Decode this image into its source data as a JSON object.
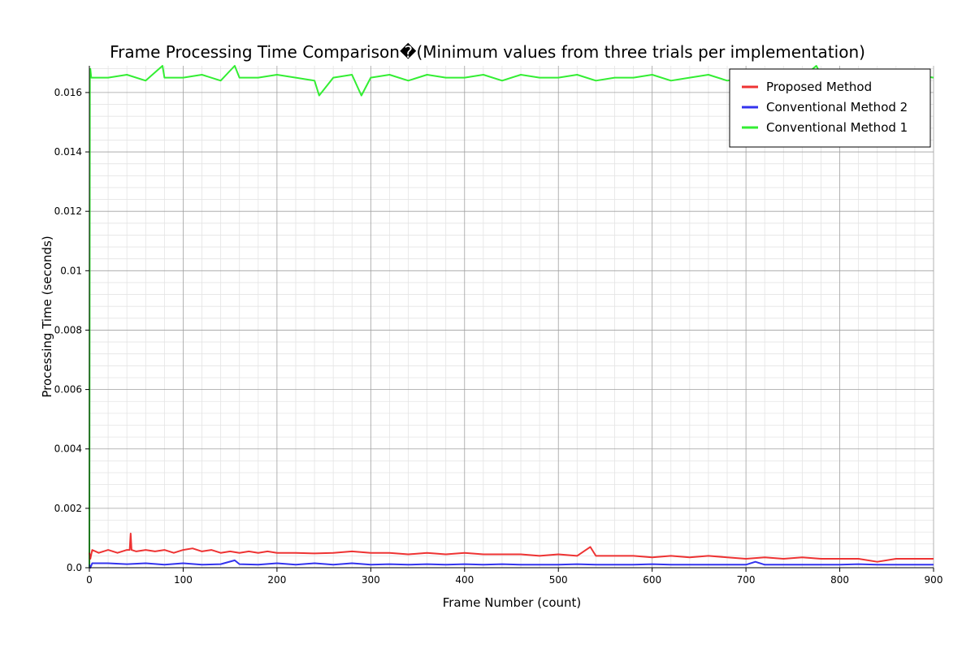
{
  "chart_data": {
    "type": "line",
    "title": "Frame Processing Time Comparison�(Minimum values from three trials per implementation)",
    "xlabel": "Frame Number (count)",
    "ylabel": "Processing Time (seconds)",
    "xlim": [
      0,
      900
    ],
    "ylim": [
      0,
      0.0169
    ],
    "xticks": [
      0,
      100,
      200,
      300,
      400,
      500,
      600,
      700,
      800,
      900
    ],
    "yticks": [
      0.0,
      0.002,
      0.004,
      0.006,
      0.008,
      0.01,
      0.012,
      0.014,
      0.016
    ],
    "ytick_labels": [
      "0.0",
      "0.002",
      "0.004",
      "0.006",
      "0.008",
      "0.01",
      "0.012",
      "0.014",
      "0.016"
    ],
    "grid": true,
    "minor_grid": true,
    "legend_position": "top-right",
    "series_summary_note_free": true,
    "series": [
      {
        "name": "Proposed Method",
        "color": "#ee3333",
        "x": [
          0,
          1,
          3,
          10,
          20,
          30,
          40,
          43,
          44,
          45,
          50,
          60,
          70,
          80,
          90,
          100,
          110,
          120,
          130,
          140,
          150,
          160,
          170,
          180,
          190,
          200,
          220,
          240,
          260,
          280,
          300,
          320,
          340,
          360,
          380,
          400,
          420,
          440,
          460,
          480,
          500,
          520,
          534,
          540,
          560,
          580,
          600,
          620,
          640,
          660,
          680,
          700,
          720,
          740,
          760,
          780,
          800,
          820,
          840,
          860,
          880,
          900
        ],
        "y": [
          0.0005,
          0.0003,
          0.0006,
          0.0005,
          0.0006,
          0.0005,
          0.0006,
          0.0006,
          0.00115,
          0.0006,
          0.00055,
          0.0006,
          0.00055,
          0.0006,
          0.0005,
          0.0006,
          0.00065,
          0.00055,
          0.0006,
          0.0005,
          0.00055,
          0.0005,
          0.00055,
          0.0005,
          0.00055,
          0.0005,
          0.0005,
          0.00048,
          0.0005,
          0.00055,
          0.0005,
          0.0005,
          0.00045,
          0.0005,
          0.00045,
          0.0005,
          0.00045,
          0.00045,
          0.00045,
          0.0004,
          0.00045,
          0.0004,
          0.0007,
          0.0004,
          0.0004,
          0.0004,
          0.00035,
          0.0004,
          0.00035,
          0.0004,
          0.00035,
          0.0003,
          0.00035,
          0.0003,
          0.00035,
          0.0003,
          0.0003,
          0.0003,
          0.0002,
          0.0003,
          0.0003,
          0.0003
        ]
      },
      {
        "name": "Conventional Method 2",
        "color": "#3333ee",
        "x": [
          0,
          1,
          3,
          20,
          40,
          60,
          80,
          100,
          120,
          140,
          155,
          160,
          180,
          200,
          220,
          240,
          260,
          280,
          300,
          320,
          340,
          360,
          380,
          400,
          420,
          440,
          460,
          480,
          500,
          520,
          540,
          560,
          580,
          600,
          620,
          640,
          660,
          680,
          700,
          710,
          720,
          740,
          760,
          780,
          800,
          820,
          840,
          860,
          880,
          900
        ],
        "y": [
          0.0001,
          0.0,
          0.00015,
          0.00015,
          0.00012,
          0.00015,
          0.0001,
          0.00015,
          0.0001,
          0.00012,
          0.00025,
          0.00012,
          0.0001,
          0.00015,
          0.0001,
          0.00015,
          0.0001,
          0.00015,
          0.0001,
          0.00012,
          0.0001,
          0.00012,
          0.0001,
          0.00012,
          0.0001,
          0.00012,
          0.0001,
          0.0001,
          0.0001,
          0.00012,
          0.0001,
          0.0001,
          0.0001,
          0.00012,
          0.0001,
          0.0001,
          0.0001,
          0.0001,
          0.0001,
          0.0002,
          0.0001,
          0.0001,
          0.0001,
          0.0001,
          0.0001,
          0.00012,
          0.0001,
          0.0001,
          0.0001,
          0.0001
        ]
      },
      {
        "name": "Conventional Method 1",
        "color": "#33ee33",
        "x": [
          0,
          0.5,
          1,
          2,
          20,
          40,
          60,
          78,
          80,
          100,
          120,
          140,
          155,
          160,
          180,
          200,
          220,
          240,
          245,
          260,
          280,
          290,
          300,
          320,
          340,
          360,
          380,
          400,
          420,
          440,
          460,
          480,
          500,
          520,
          540,
          560,
          580,
          600,
          620,
          640,
          660,
          680,
          700,
          720,
          740,
          760,
          775,
          780,
          800,
          820,
          840,
          860,
          880,
          900
        ],
        "y": [
          0.0,
          0.0165,
          0.0168,
          0.0165,
          0.0165,
          0.0166,
          0.0164,
          0.0169,
          0.0165,
          0.0165,
          0.0166,
          0.0164,
          0.0169,
          0.0165,
          0.0165,
          0.0166,
          0.0165,
          0.0164,
          0.0159,
          0.0165,
          0.0166,
          0.0159,
          0.0165,
          0.0166,
          0.0164,
          0.0166,
          0.0165,
          0.0165,
          0.0166,
          0.0164,
          0.0166,
          0.0165,
          0.0165,
          0.0166,
          0.0164,
          0.0165,
          0.0165,
          0.0166,
          0.0164,
          0.0165,
          0.0166,
          0.0164,
          0.0165,
          0.0166,
          0.0165,
          0.0165,
          0.0169,
          0.0166,
          0.0165,
          0.0166,
          0.0164,
          0.0165,
          0.0166,
          0.0165
        ]
      }
    ]
  }
}
